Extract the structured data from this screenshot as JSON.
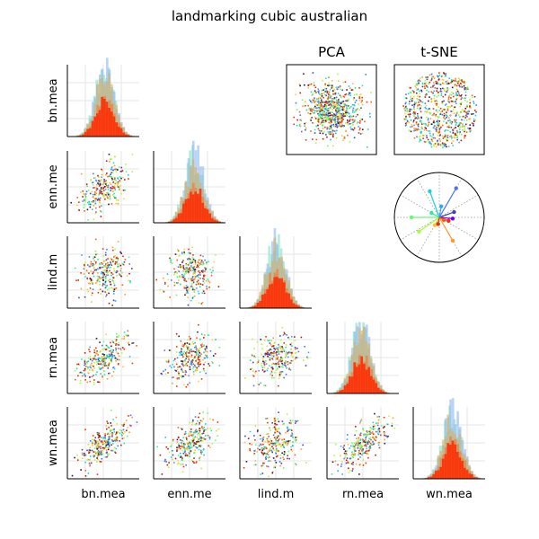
{
  "title": "landmarking cubic australian",
  "chart_data": {
    "type": "scatter",
    "title": "landmarking cubic australian",
    "variables": [
      "bn.mea",
      "enn.me",
      "lind.m",
      "rn.mea",
      "wn.mea"
    ],
    "histograms": "diagonal",
    "projections": [
      {
        "title": "PCA"
      },
      {
        "title": "t-SNE"
      }
    ],
    "radial": {
      "grid": "dotted",
      "spokes": 12
    },
    "palette": [
      "#30123b",
      "#4145ab",
      "#4675ed",
      "#39a2fc",
      "#1bcfd4",
      "#24eca6",
      "#61fc6c",
      "#a4fc3b",
      "#d1e834",
      "#f3c63a",
      "#fe9b2d",
      "#f36315",
      "#d93806",
      "#b11901",
      "#ff2a00"
    ],
    "grid": true,
    "legend": "none"
  }
}
